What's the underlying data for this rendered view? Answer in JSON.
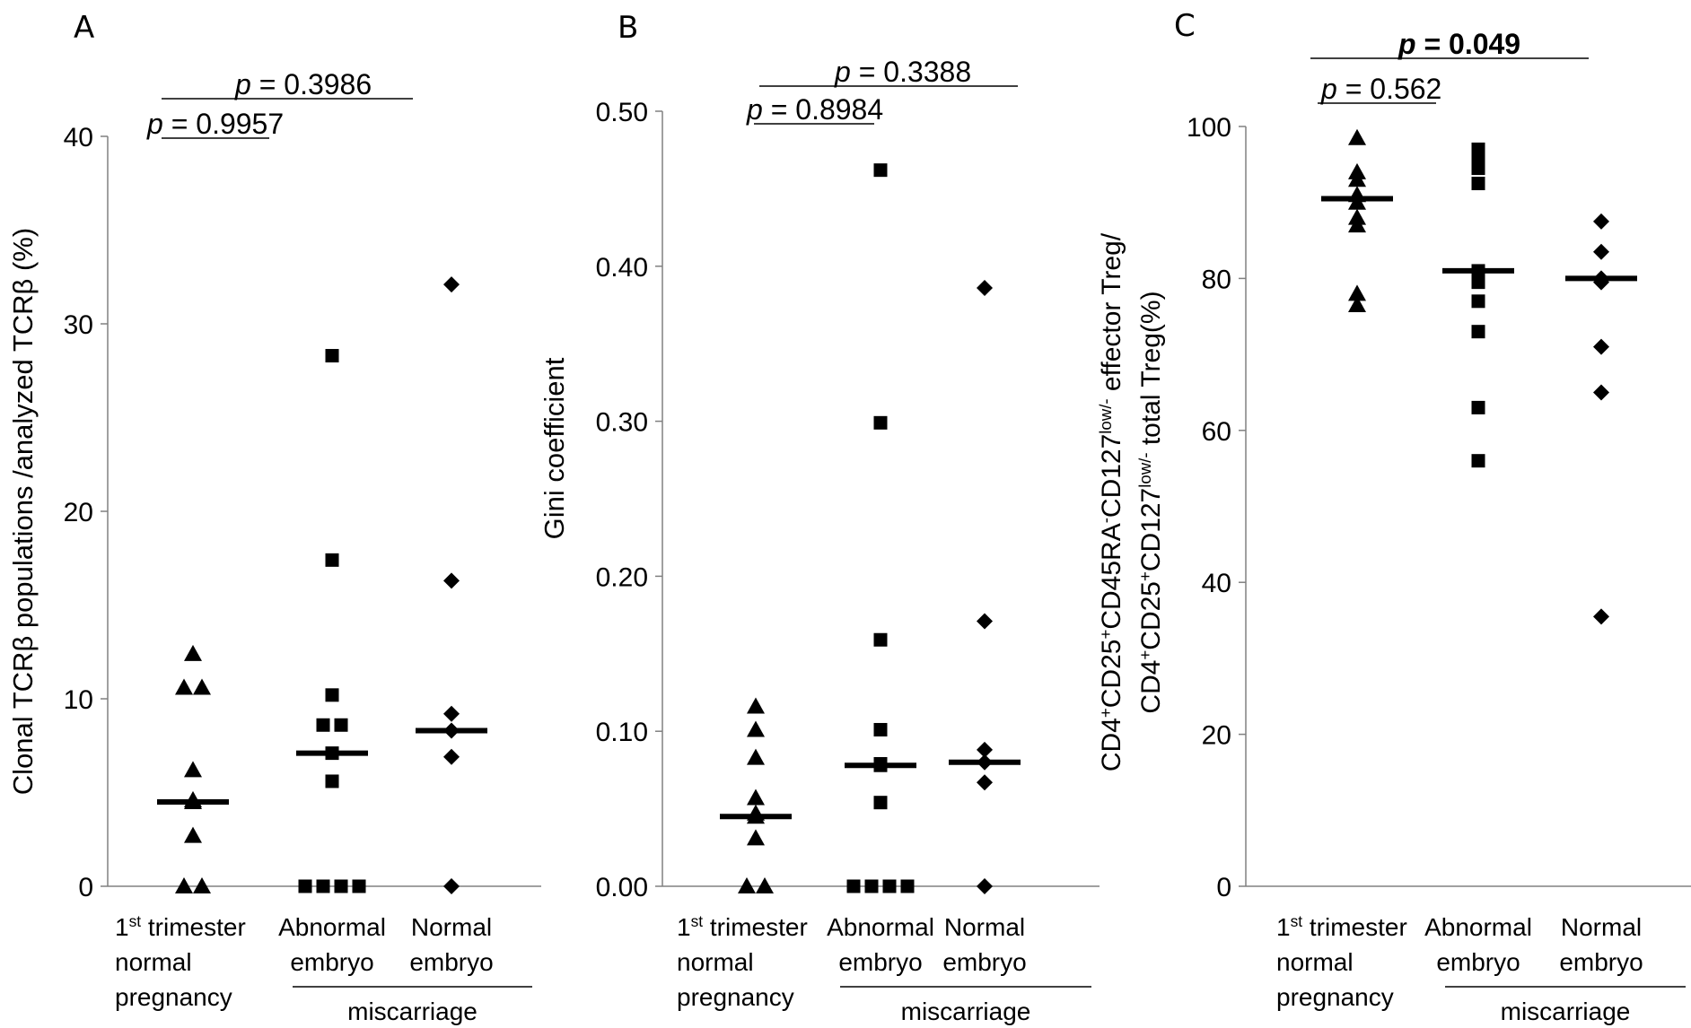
{
  "chart_data": [
    {
      "panel": "A",
      "type": "scatter",
      "ylabel": "Clonal TCRβ populations /analyzed TCRβ (%)",
      "ylim": [
        0,
        40
      ],
      "yticks": [
        "0",
        "10",
        "20",
        "30",
        "40"
      ],
      "categories": [
        {
          "lines": [
            [
              "1",
              "st",
              " trimester"
            ],
            [
              "normal"
            ],
            [
              "pregnancy"
            ]
          ]
        },
        {
          "lines": [
            [
              "Abnormal"
            ],
            [
              "embryo"
            ]
          ]
        },
        {
          "lines": [
            [
              "Normal"
            ],
            [
              "embryo"
            ]
          ]
        }
      ],
      "group_label": "miscarriage",
      "marker_names": [
        "triangle",
        "square",
        "diamond"
      ],
      "series": [
        {
          "values": [
            12.4,
            10.6,
            10.6,
            6.2,
            4.6,
            4.5,
            2.7,
            0,
            0
          ],
          "median": 4.5
        },
        {
          "values": [
            28.3,
            17.4,
            10.2,
            8.6,
            8.6,
            7.1,
            5.6,
            0,
            0,
            0,
            0
          ],
          "median": 7.1
        },
        {
          "values": [
            32.1,
            16.3,
            9.2,
            8.3,
            6.9,
            0
          ],
          "median": 8.3
        }
      ],
      "comparisons": [
        {
          "from": 0,
          "to": 2,
          "p": "0.3986",
          "bold": false
        },
        {
          "from": 0,
          "to": 1,
          "p": "0.9957",
          "bold": false
        }
      ]
    },
    {
      "panel": "B",
      "type": "scatter",
      "ylabel": "Gini coefficient",
      "ylim": [
        0,
        0.5
      ],
      "yticks": [
        "0.00",
        "0.10",
        "0.20",
        "0.30",
        "0.40",
        "0.50"
      ],
      "categories": [
        {
          "lines": [
            [
              "1",
              "st",
              " trimester"
            ],
            [
              "normal"
            ],
            [
              "pregnancy"
            ]
          ]
        },
        {
          "lines": [
            [
              "Abnormal"
            ],
            [
              "embryo"
            ]
          ]
        },
        {
          "lines": [
            [
              "Normal"
            ],
            [
              "embryo"
            ]
          ]
        }
      ],
      "group_label": "miscarriage",
      "marker_names": [
        "triangle",
        "square",
        "diamond"
      ],
      "series": [
        {
          "values": [
            0.116,
            0.101,
            0.083,
            0.057,
            0.047,
            0.045,
            0.031,
            0,
            0
          ],
          "median": 0.045
        },
        {
          "values": [
            0.462,
            0.299,
            0.159,
            0.101,
            0.079,
            0.078,
            0.054,
            0,
            0,
            0,
            0
          ],
          "median": 0.078
        },
        {
          "values": [
            0.386,
            0.171,
            0.088,
            0.08,
            0.067,
            0
          ],
          "median": 0.08
        }
      ],
      "comparisons": [
        {
          "from": 0,
          "to": 2,
          "p": "0.3388",
          "bold": false
        },
        {
          "from": 0,
          "to": 1,
          "p": "0.8984",
          "bold": false
        }
      ]
    },
    {
      "panel": "C",
      "type": "scatter",
      "ylabel_lines": [
        [
          [
            "CD4",
            ""
          ],
          [
            "+",
            "sup"
          ],
          [
            "CD25",
            ""
          ],
          [
            "+",
            "sup"
          ],
          [
            "CD45RA",
            ""
          ],
          [
            "-",
            "sup"
          ],
          [
            "CD127",
            ""
          ],
          [
            "low/-",
            "sup"
          ],
          [
            " effector Treg/",
            ""
          ]
        ],
        [
          [
            "CD4",
            ""
          ],
          [
            "+",
            "sup"
          ],
          [
            "CD25",
            ""
          ],
          [
            "+",
            "sup"
          ],
          [
            "CD127",
            ""
          ],
          [
            "low/-",
            "sup"
          ],
          [
            "  total Treg(%)",
            ""
          ]
        ]
      ],
      "ylim": [
        0,
        100
      ],
      "yticks": [
        "0",
        "20",
        "40",
        "60",
        "80",
        "100"
      ],
      "categories": [
        {
          "lines": [
            [
              "1",
              "st",
              " trimester"
            ],
            [
              "normal"
            ],
            [
              "pregnancy"
            ]
          ]
        },
        {
          "lines": [
            [
              "Abnormal"
            ],
            [
              "embryo"
            ]
          ]
        },
        {
          "lines": [
            [
              "Normal"
            ],
            [
              "embryo"
            ]
          ]
        }
      ],
      "group_label": "miscarriage",
      "marker_names": [
        "triangle",
        "square",
        "diamond"
      ],
      "series": [
        {
          "values": [
            98.5,
            94,
            93,
            91,
            90,
            88,
            87,
            78,
            76.5
          ],
          "median": 90.5
        },
        {
          "values": [
            97,
            95.5,
            95,
            94.5,
            92.5,
            81,
            79.5,
            77,
            73,
            63,
            56
          ],
          "median": 81
        },
        {
          "values": [
            87.5,
            83.5,
            80,
            79.5,
            71,
            65,
            35.5
          ],
          "median": 80
        }
      ],
      "comparisons": [
        {
          "from": 0,
          "to": 2,
          "p": "0.049",
          "bold": true
        },
        {
          "from": 0,
          "to": 1,
          "p": "0.562",
          "bold": false
        }
      ]
    }
  ]
}
